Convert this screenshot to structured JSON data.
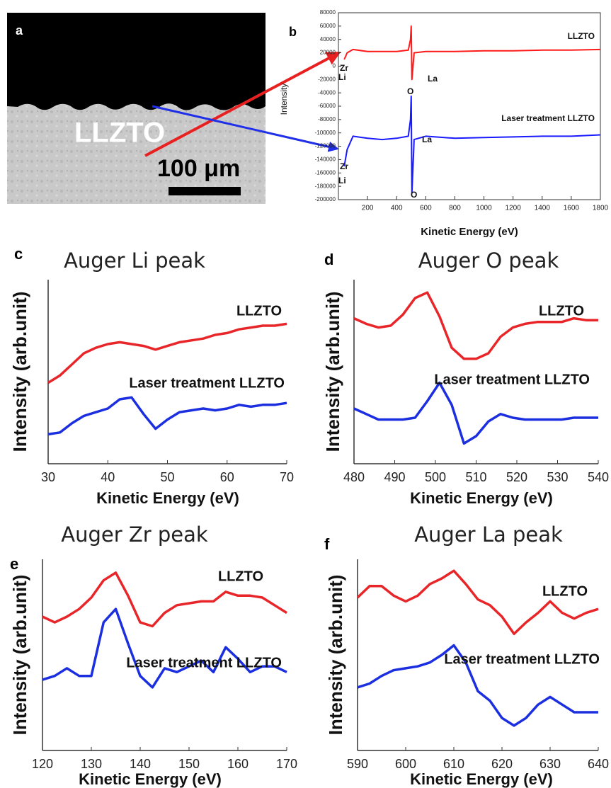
{
  "image_panel": {
    "panel": "a",
    "label": "LLZTO",
    "scale_bar": "100 μm"
  },
  "chart_data": [
    {
      "type": "line",
      "panel": "b",
      "xlabel": "Kinetic Energy (eV)",
      "ylabel": "Intensity",
      "xlim": [
        0,
        1800
      ],
      "xticks": [
        200,
        400,
        600,
        800,
        1000,
        1200,
        1400,
        1600,
        1800
      ],
      "ylim": [
        -200000,
        80000
      ],
      "yticks": [
        -200000,
        -180000,
        -160000,
        -140000,
        -120000,
        -100000,
        -80000,
        -60000,
        -40000,
        -20000,
        0,
        20000,
        40000,
        60000,
        80000
      ],
      "x": [
        40,
        60,
        100,
        200,
        300,
        400,
        480,
        495,
        500,
        505,
        520,
        600,
        800,
        1000,
        1200,
        1400,
        1600,
        1800
      ],
      "series": [
        {
          "name": "LLZTO",
          "color": "#ff1a1a",
          "values": [
            10000,
            20000,
            25000,
            22000,
            22000,
            22000,
            24000,
            40000,
            60000,
            -20000,
            20000,
            22000,
            22000,
            23000,
            23000,
            24000,
            24000,
            25000
          ]
        },
        {
          "name": "Laser treatment LLZTO",
          "color": "#1a1aff",
          "values": [
            -150000,
            -125000,
            -105000,
            -108000,
            -110000,
            -108000,
            -105000,
            -80000,
            -45000,
            -190000,
            -110000,
            -105000,
            -108000,
            -107000,
            -106000,
            -105000,
            -105000,
            -103000
          ]
        }
      ],
      "annotations": [
        "Zr",
        "Li",
        "O",
        "La",
        "Zr",
        "Li",
        "La",
        "O"
      ]
    },
    {
      "type": "line",
      "panel": "c",
      "title": "Auger Li peak",
      "xlabel": "Kinetic Energy (eV)",
      "ylabel": "Intensity (arb.unit)",
      "xlim": [
        30,
        70
      ],
      "xticks": [
        30,
        40,
        50,
        60,
        70
      ],
      "ylim": [
        0,
        10
      ],
      "x": [
        30,
        32,
        34,
        36,
        38,
        40,
        42,
        44,
        46,
        48,
        50,
        52,
        54,
        56,
        58,
        60,
        62,
        64,
        66,
        68,
        70
      ],
      "series": [
        {
          "name": "LLZTO",
          "color": "#e8262a",
          "values": [
            4.4,
            4.8,
            5.4,
            6.0,
            6.3,
            6.5,
            6.6,
            6.5,
            6.4,
            6.2,
            6.4,
            6.6,
            6.7,
            6.8,
            7.0,
            7.1,
            7.3,
            7.4,
            7.5,
            7.5,
            7.6
          ]
        },
        {
          "name": "Laser treatment LLZTO",
          "color": "#1c2fe0",
          "values": [
            1.6,
            1.7,
            2.2,
            2.6,
            2.8,
            3.0,
            3.5,
            3.6,
            2.7,
            1.9,
            2.4,
            2.8,
            2.9,
            3.0,
            2.9,
            3.0,
            3.2,
            3.1,
            3.2,
            3.2,
            3.3
          ]
        }
      ]
    },
    {
      "type": "line",
      "panel": "d",
      "title": "Auger O peak",
      "xlabel": "Kinetic Energy (eV)",
      "ylabel": "Intensity (arb.unit)",
      "xlim": [
        480,
        540
      ],
      "xticks": [
        480,
        490,
        500,
        510,
        520,
        530,
        540
      ],
      "ylim": [
        0,
        10
      ],
      "x": [
        480,
        483,
        486,
        489,
        492,
        495,
        498,
        501,
        504,
        507,
        510,
        513,
        516,
        519,
        522,
        525,
        528,
        531,
        534,
        537,
        540
      ],
      "series": [
        {
          "name": "LLZTO",
          "color": "#e8262a",
          "values": [
            7.9,
            7.6,
            7.4,
            7.5,
            8.1,
            9.0,
            9.3,
            8.0,
            6.3,
            5.7,
            5.7,
            6.0,
            6.9,
            7.4,
            7.6,
            7.7,
            7.7,
            7.7,
            7.9,
            7.8,
            7.8
          ]
        },
        {
          "name": "Laser treatment LLZTO",
          "color": "#1c2fe0",
          "values": [
            3.0,
            2.7,
            2.4,
            2.4,
            2.4,
            2.5,
            3.4,
            4.4,
            3.2,
            1.1,
            1.5,
            2.3,
            2.7,
            2.5,
            2.4,
            2.4,
            2.4,
            2.4,
            2.5,
            2.5,
            2.5
          ]
        }
      ]
    },
    {
      "type": "line",
      "panel": "e",
      "title": "Auger Zr peak",
      "xlabel": "Kinetic Energy (eV)",
      "ylabel": "Intensity (arb.unit)",
      "xlim": [
        120,
        170
      ],
      "xticks": [
        120,
        130,
        140,
        150,
        160,
        170
      ],
      "ylim": [
        0,
        10
      ],
      "x": [
        120,
        122.5,
        125,
        127.5,
        130,
        132.5,
        135,
        137.5,
        140,
        142.5,
        145,
        147.5,
        150,
        152.5,
        155,
        157.5,
        160,
        162.5,
        165,
        167.5,
        170
      ],
      "series": [
        {
          "name": "LLZTO",
          "color": "#e8262a",
          "values": [
            7.0,
            6.7,
            7.0,
            7.4,
            8.0,
            8.9,
            9.3,
            8.1,
            6.7,
            6.5,
            7.2,
            7.6,
            7.7,
            7.8,
            7.8,
            8.3,
            8.1,
            8.1,
            8.0,
            7.6,
            7.2
          ]
        },
        {
          "name": "Laser treatment LLZTO",
          "color": "#1c2fe0",
          "values": [
            3.7,
            3.9,
            4.3,
            3.9,
            3.9,
            6.7,
            7.4,
            5.6,
            3.9,
            3.3,
            4.3,
            4.1,
            4.4,
            4.7,
            4.1,
            5.4,
            4.8,
            4.1,
            4.4,
            4.4,
            4.1
          ]
        }
      ]
    },
    {
      "type": "line",
      "panel": "f",
      "title": "Auger La peak",
      "xlabel": "Kinetic Energy (eV)",
      "ylabel": "Intensity (arb.unit)",
      "xlim": [
        590,
        640
      ],
      "xticks": [
        590,
        600,
        610,
        620,
        630,
        640
      ],
      "ylim": [
        0,
        10
      ],
      "x": [
        590,
        592.5,
        595,
        597.5,
        600,
        602.5,
        605,
        607.5,
        610,
        612.5,
        615,
        617.5,
        620,
        622.5,
        625,
        627.5,
        630,
        632.5,
        635,
        637.5,
        640
      ],
      "series": [
        {
          "name": "LLZTO",
          "color": "#e8262a",
          "values": [
            8.0,
            8.6,
            8.6,
            8.1,
            7.8,
            8.1,
            8.7,
            9.0,
            9.4,
            8.7,
            7.9,
            7.6,
            7.0,
            6.1,
            6.7,
            7.2,
            7.8,
            7.2,
            6.9,
            7.2,
            7.4
          ]
        },
        {
          "name": "Laser treatment LLZTO",
          "color": "#1c2fe0",
          "values": [
            3.3,
            3.5,
            3.9,
            4.2,
            4.3,
            4.4,
            4.6,
            5.0,
            5.5,
            4.6,
            3.1,
            2.6,
            1.7,
            1.3,
            1.7,
            2.4,
            2.8,
            2.4,
            2.0,
            2.0,
            2.0
          ]
        }
      ]
    }
  ]
}
